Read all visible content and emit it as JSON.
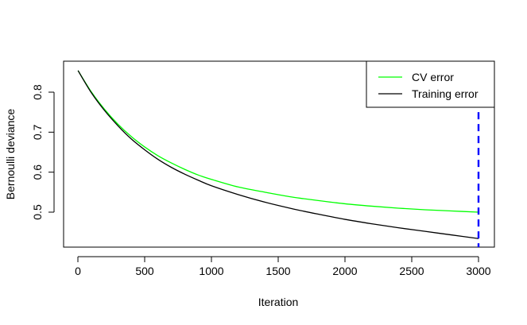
{
  "chart_data": {
    "type": "line",
    "title": "",
    "xlabel": "Iteration",
    "ylabel": "Bernoulli deviance",
    "xlim": [
      0,
      3000
    ],
    "ylim": [
      0.42,
      0.86
    ],
    "x_ticks": [
      0,
      500,
      1000,
      1500,
      2000,
      2500,
      3000
    ],
    "x_tick_labels": [
      "0",
      "500",
      "1000",
      "1500",
      "2000",
      "2500",
      "3000"
    ],
    "y_ticks": [
      0.5,
      0.6,
      0.7,
      0.8
    ],
    "y_tick_labels": [
      "0.5",
      "0.6",
      "0.7",
      "0.8"
    ],
    "grid": false,
    "legend": {
      "position": "top-right",
      "entries": [
        "CV error",
        "Training error"
      ]
    },
    "x": [
      1,
      100,
      200,
      300,
      400,
      500,
      600,
      700,
      800,
      900,
      1000,
      1200,
      1400,
      1600,
      1800,
      2000,
      2200,
      2400,
      2600,
      2800,
      3000
    ],
    "series": [
      {
        "name": "CV error",
        "color": "#00ff00",
        "values": [
          0.854,
          0.801,
          0.757,
          0.72,
          0.689,
          0.663,
          0.641,
          0.623,
          0.607,
          0.593,
          0.582,
          0.563,
          0.55,
          0.538,
          0.529,
          0.521,
          0.515,
          0.51,
          0.506,
          0.503,
          0.5
        ]
      },
      {
        "name": "Training error",
        "color": "#000000",
        "values": [
          0.854,
          0.799,
          0.754,
          0.716,
          0.683,
          0.656,
          0.632,
          0.612,
          0.595,
          0.58,
          0.566,
          0.544,
          0.525,
          0.509,
          0.495,
          0.482,
          0.471,
          0.461,
          0.452,
          0.443,
          0.434
        ]
      }
    ],
    "optimal_iteration": {
      "x": 3000,
      "color": "#0000ff",
      "style": "dashed"
    }
  }
}
